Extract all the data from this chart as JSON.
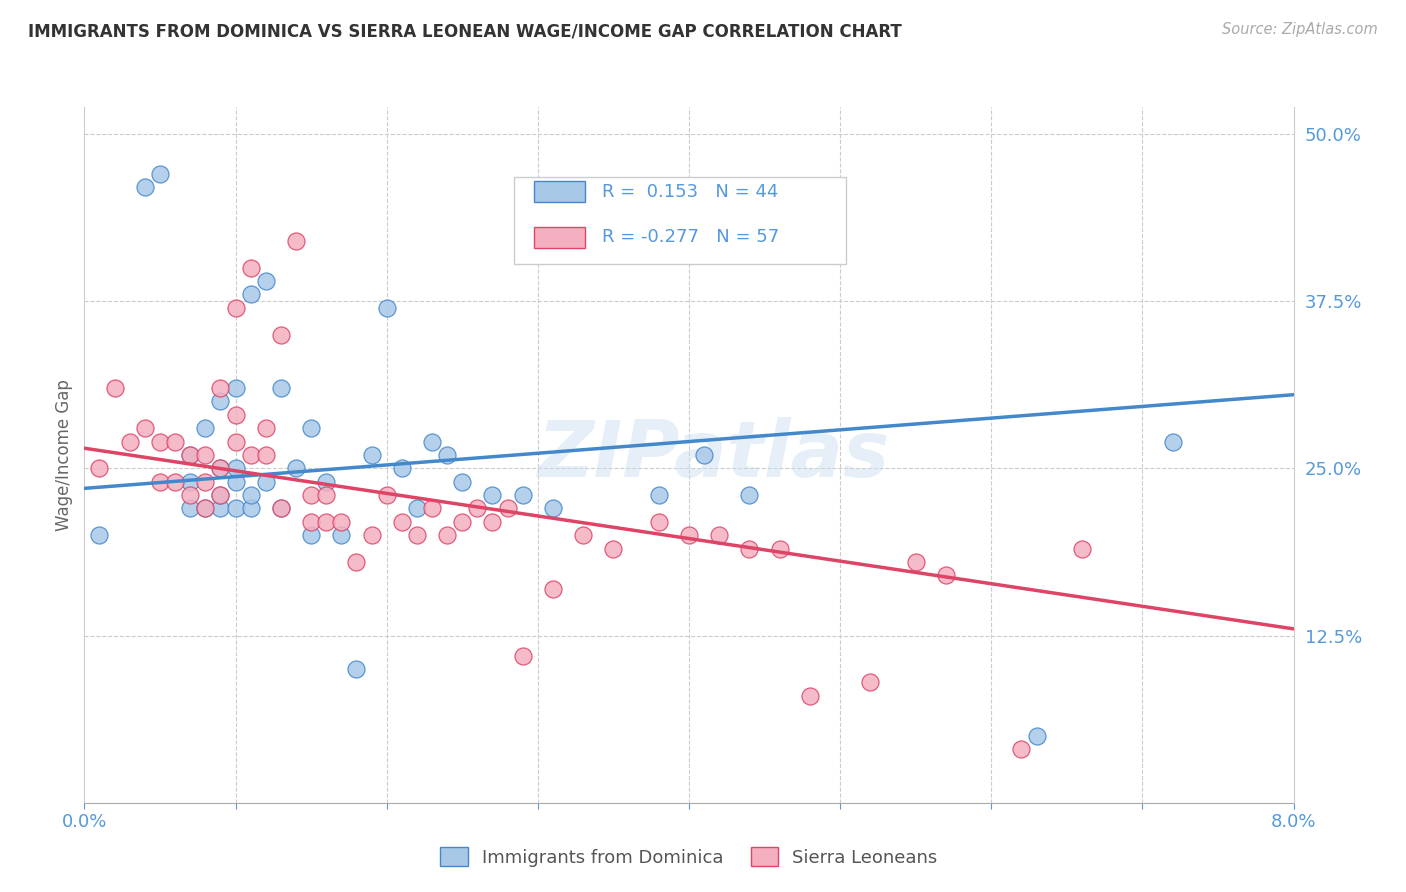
{
  "title": "IMMIGRANTS FROM DOMINICA VS SIERRA LEONEAN WAGE/INCOME GAP CORRELATION CHART",
  "source_text": "Source: ZipAtlas.com",
  "ylabel": "Wage/Income Gap",
  "ytick_labels": [
    "12.5%",
    "25.0%",
    "37.5%",
    "50.0%"
  ],
  "ytick_values": [
    0.125,
    0.25,
    0.375,
    0.5
  ],
  "xlim": [
    0.0,
    0.08
  ],
  "ylim": [
    0.0,
    0.52
  ],
  "color_blue": "#a8c8e8",
  "color_pink": "#f4b0c0",
  "color_blue_line": "#4488cc",
  "color_pink_line": "#dd4466",
  "dominica_x": [
    0.001,
    0.004,
    0.005,
    0.007,
    0.007,
    0.007,
    0.008,
    0.008,
    0.009,
    0.009,
    0.009,
    0.009,
    0.01,
    0.01,
    0.01,
    0.01,
    0.011,
    0.011,
    0.011,
    0.012,
    0.012,
    0.013,
    0.013,
    0.014,
    0.015,
    0.015,
    0.016,
    0.017,
    0.018,
    0.019,
    0.02,
    0.021,
    0.022,
    0.023,
    0.024,
    0.025,
    0.027,
    0.029,
    0.031,
    0.038,
    0.041,
    0.044,
    0.063,
    0.072
  ],
  "dominica_y": [
    0.2,
    0.46,
    0.47,
    0.22,
    0.24,
    0.26,
    0.22,
    0.28,
    0.22,
    0.23,
    0.25,
    0.3,
    0.22,
    0.24,
    0.25,
    0.31,
    0.22,
    0.23,
    0.38,
    0.24,
    0.39,
    0.22,
    0.31,
    0.25,
    0.2,
    0.28,
    0.24,
    0.2,
    0.1,
    0.26,
    0.37,
    0.25,
    0.22,
    0.27,
    0.26,
    0.24,
    0.23,
    0.23,
    0.22,
    0.23,
    0.26,
    0.23,
    0.05,
    0.27
  ],
  "sierra_x": [
    0.001,
    0.002,
    0.003,
    0.004,
    0.005,
    0.005,
    0.006,
    0.006,
    0.007,
    0.007,
    0.008,
    0.008,
    0.008,
    0.009,
    0.009,
    0.009,
    0.01,
    0.01,
    0.01,
    0.011,
    0.011,
    0.012,
    0.012,
    0.013,
    0.013,
    0.014,
    0.015,
    0.015,
    0.016,
    0.016,
    0.017,
    0.018,
    0.019,
    0.02,
    0.021,
    0.022,
    0.023,
    0.024,
    0.025,
    0.026,
    0.027,
    0.028,
    0.029,
    0.031,
    0.033,
    0.035,
    0.038,
    0.04,
    0.042,
    0.044,
    0.046,
    0.048,
    0.052,
    0.055,
    0.057,
    0.062,
    0.066
  ],
  "sierra_y": [
    0.25,
    0.31,
    0.27,
    0.28,
    0.27,
    0.24,
    0.24,
    0.27,
    0.23,
    0.26,
    0.22,
    0.24,
    0.26,
    0.23,
    0.25,
    0.31,
    0.27,
    0.29,
    0.37,
    0.26,
    0.4,
    0.26,
    0.28,
    0.22,
    0.35,
    0.42,
    0.21,
    0.23,
    0.21,
    0.23,
    0.21,
    0.18,
    0.2,
    0.23,
    0.21,
    0.2,
    0.22,
    0.2,
    0.21,
    0.22,
    0.21,
    0.22,
    0.11,
    0.16,
    0.2,
    0.19,
    0.21,
    0.2,
    0.2,
    0.19,
    0.19,
    0.08,
    0.09,
    0.18,
    0.17,
    0.04,
    0.19
  ]
}
